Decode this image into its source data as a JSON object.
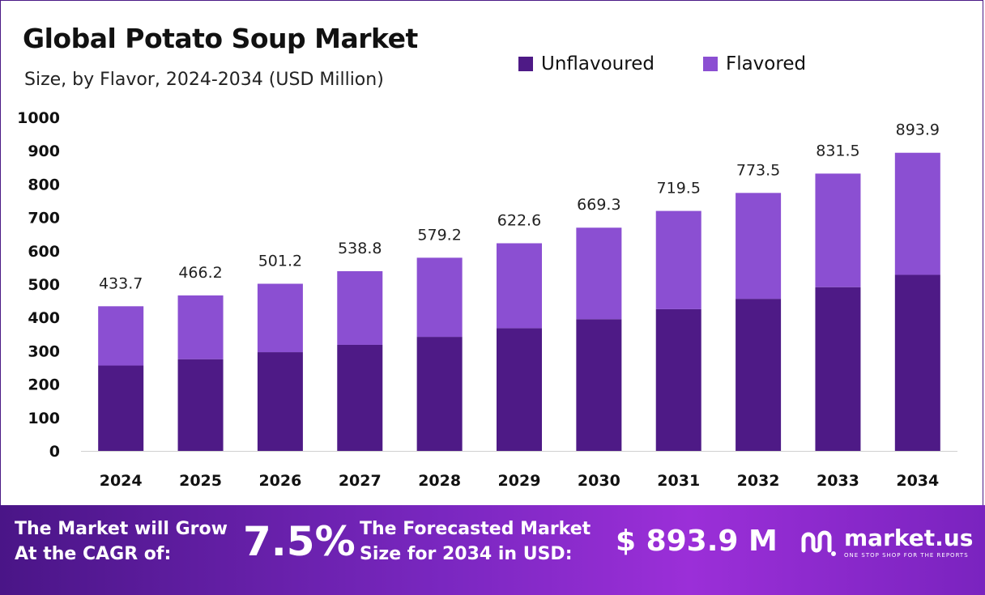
{
  "chart_data": {
    "type": "bar",
    "stacked": true,
    "title": "Global Potato Soup Market",
    "subtitle": "Size, by Flavor, 2024-2034 (USD Million)",
    "categories": [
      "2024",
      "2025",
      "2026",
      "2027",
      "2028",
      "2029",
      "2030",
      "2031",
      "2032",
      "2033",
      "2034"
    ],
    "series": [
      {
        "name": "Unflavoured",
        "color": "#4e1a86",
        "values": [
          256,
          275,
          296,
          318,
          342,
          368,
          395,
          425,
          456,
          491,
          528
        ]
      },
      {
        "name": "Flavored",
        "color": "#8b4fd2",
        "values": [
          177.7,
          191.2,
          205.2,
          220.8,
          237.2,
          254.6,
          274.3,
          294.5,
          317.5,
          340.5,
          365.9
        ]
      }
    ],
    "totals": [
      "433.7",
      "466.2",
      "501.2",
      "538.8",
      "579.2",
      "622.6",
      "669.3",
      "719.5",
      "773.5",
      "831.5",
      "893.9"
    ],
    "yticks": [
      "0",
      "100",
      "200",
      "300",
      "400",
      "500",
      "600",
      "700",
      "800",
      "900",
      "1000"
    ],
    "ylim": [
      0,
      1000
    ],
    "legend_position": "top-right",
    "grid": false
  },
  "banner": {
    "cagr_label_1": "The Market will Grow",
    "cagr_label_2": "At the CAGR of:",
    "cagr_value": "7.5%",
    "forecast_label_1": "The Forecasted Market",
    "forecast_label_2": "Size for 2034 in USD:",
    "forecast_value": "$ 893.9 M"
  },
  "logo": {
    "name": "market.us",
    "tagline": "ONE STOP SHOP FOR THE REPORTS",
    "icon": "market-us-logo-icon"
  }
}
